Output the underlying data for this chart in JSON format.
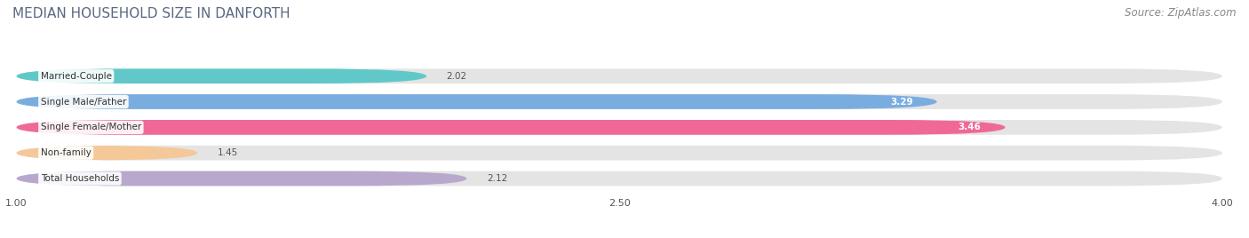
{
  "title": "MEDIAN HOUSEHOLD SIZE IN DANFORTH",
  "source": "Source: ZipAtlas.com",
  "categories": [
    "Married-Couple",
    "Single Male/Father",
    "Single Female/Mother",
    "Non-family",
    "Total Households"
  ],
  "values": [
    2.02,
    3.29,
    3.46,
    1.45,
    2.12
  ],
  "bar_colors": [
    "#60c8c8",
    "#7aaddf",
    "#f06898",
    "#f5c898",
    "#b9a8ce"
  ],
  "bar_edge_colors": [
    "#40b0b0",
    "#5a8ec8",
    "#d84080",
    "#d89050",
    "#8870b0"
  ],
  "xlim_min": 1.0,
  "xlim_max": 4.0,
  "xticks": [
    1.0,
    2.5,
    4.0
  ],
  "background_color": "#ffffff",
  "bar_bg_color": "#e8e8e8",
  "track_color": "#e4e4e4",
  "title_color": "#5a6880",
  "source_color": "#888888",
  "title_fontsize": 11,
  "source_fontsize": 8.5,
  "label_fontsize": 7.5,
  "value_fontsize": 7.5,
  "bar_height": 0.58,
  "bar_gap": 0.42
}
